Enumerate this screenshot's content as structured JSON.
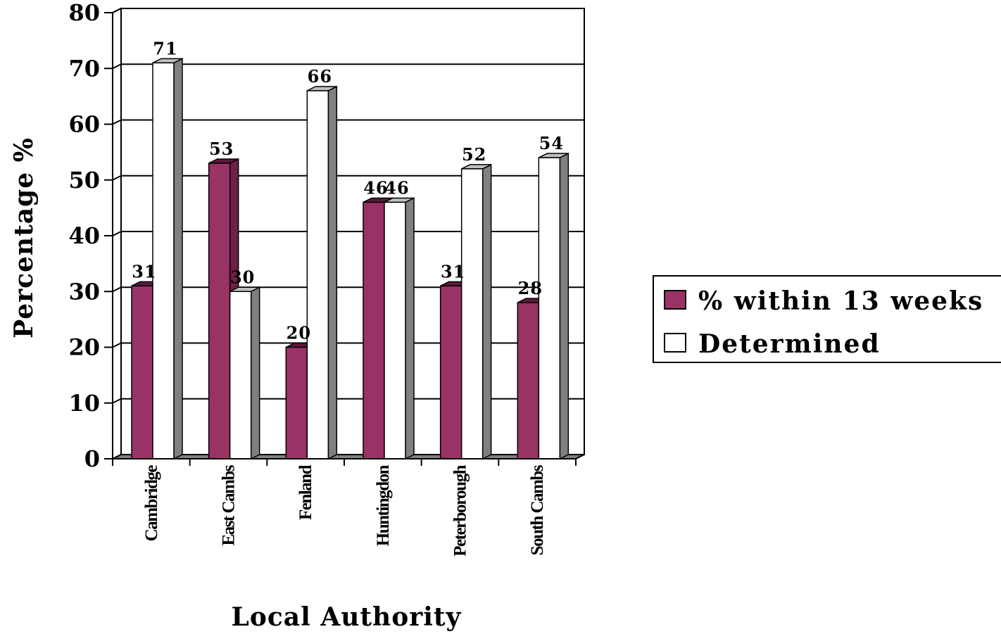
{
  "chart_data": {
    "type": "bar",
    "categories": [
      "Cambridge",
      "East Cambs",
      "Fenland",
      "Huntingdon",
      "Peterborough",
      "South Cambs"
    ],
    "series": [
      {
        "name": "% within 13 weeks",
        "values": [
          31,
          53,
          20,
          46,
          31,
          28
        ],
        "color": "#993366"
      },
      {
        "name": "Determined",
        "values": [
          71,
          30,
          66,
          46,
          52,
          54
        ],
        "color": "#ffffff"
      }
    ],
    "data_labels": [
      [
        "31",
        "53",
        "20",
        "46",
        "31",
        "28"
      ],
      [
        "71",
        "30",
        "66",
        "46",
        "52",
        "54"
      ]
    ],
    "xlabel": "Local Authority",
    "ylabel": "Percentage %",
    "ylim": [
      0,
      80
    ],
    "yticks": [
      0,
      10,
      20,
      30,
      40,
      50,
      60,
      70,
      80
    ],
    "ytick_labels": [
      "0",
      "10",
      "20",
      "30",
      "40",
      "50",
      "60",
      "70",
      "80"
    ],
    "grid": true,
    "legend_position": "right",
    "style": "3d-clustered-bar",
    "wall_color": "#ffffff",
    "side_color": "#808080"
  }
}
